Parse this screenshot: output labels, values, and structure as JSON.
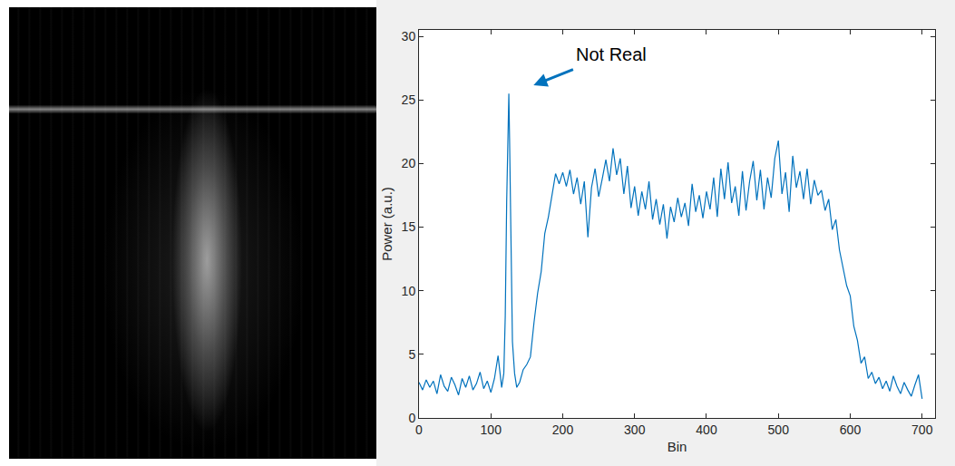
{
  "chart_data": {
    "type": "line",
    "xlabel": "Bin",
    "ylabel": "Power (a.u.)",
    "x": [
      0,
      5,
      10,
      15,
      20,
      25,
      30,
      35,
      40,
      45,
      50,
      55,
      60,
      65,
      70,
      75,
      80,
      85,
      90,
      95,
      100,
      105,
      110,
      115,
      118,
      120,
      122,
      124,
      125,
      126,
      128,
      130,
      133,
      136,
      140,
      145,
      150,
      155,
      160,
      165,
      170,
      175,
      180,
      185,
      190,
      195,
      200,
      205,
      210,
      215,
      220,
      225,
      230,
      235,
      240,
      245,
      250,
      255,
      260,
      265,
      270,
      275,
      280,
      285,
      290,
      295,
      300,
      305,
      310,
      315,
      320,
      325,
      330,
      335,
      340,
      345,
      350,
      355,
      360,
      365,
      370,
      375,
      380,
      385,
      390,
      395,
      400,
      405,
      410,
      415,
      420,
      425,
      430,
      435,
      440,
      445,
      450,
      455,
      460,
      465,
      470,
      475,
      480,
      485,
      490,
      495,
      500,
      505,
      510,
      515,
      520,
      525,
      530,
      535,
      540,
      545,
      550,
      555,
      560,
      565,
      570,
      575,
      580,
      585,
      590,
      595,
      600,
      605,
      610,
      615,
      620,
      625,
      630,
      635,
      640,
      645,
      650,
      655,
      660,
      665,
      670,
      675,
      680,
      685,
      690,
      695,
      700
    ],
    "values": [
      2.8,
      2.2,
      3.0,
      2.4,
      2.9,
      1.9,
      3.4,
      2.5,
      2.1,
      3.2,
      2.6,
      1.8,
      3.1,
      2.4,
      3.3,
      2.2,
      2.7,
      3.6,
      2.3,
      2.9,
      2.0,
      3.1,
      4.9,
      2.4,
      3.5,
      8,
      17,
      24,
      25.5,
      22,
      12,
      6,
      3.5,
      2.4,
      2.8,
      3.8,
      4.2,
      4.8,
      7.5,
      9.8,
      11.5,
      14.5,
      15.8,
      17.6,
      19.2,
      18.4,
      19.3,
      18.2,
      19.5,
      17.6,
      18.9,
      16.8,
      18.6,
      14.2,
      18.1,
      19.6,
      17.4,
      18.8,
      20.3,
      18.6,
      21.2,
      19.1,
      20.4,
      17.6,
      19.8,
      16.5,
      18.2,
      15.9,
      17.8,
      16.4,
      18.6,
      15.6,
      17.2,
      15.2,
      16.8,
      14.1,
      16.6,
      15.4,
      17.3,
      15.8,
      16.9,
      15.1,
      18.4,
      16.2,
      17.5,
      15.7,
      17.8,
      16.4,
      18.9,
      15.8,
      19.6,
      17.2,
      20.1,
      16.9,
      18.2,
      15.9,
      19.4,
      16.3,
      18.6,
      20.2,
      17.1,
      19.5,
      16.4,
      18.9,
      17.3,
      20.4,
      21.8,
      17.6,
      19.3,
      16.2,
      20.6,
      18.1,
      19.4,
      17.2,
      19.6,
      16.8,
      18.7,
      17.5,
      17.9,
      16.3,
      17.2,
      14.8,
      15.6,
      13.2,
      11.8,
      10.4,
      9.6,
      7.2,
      6.1,
      4.3,
      4.8,
      3.1,
      3.6,
      2.7,
      3.2,
      2.3,
      2.9,
      2.1,
      3.3,
      2.5,
      1.9,
      2.8,
      2.2,
      1.7,
      2.6,
      3.4,
      1.5
    ],
    "color": "#0072BD",
    "xlim": [
      0,
      718
    ],
    "ylim": [
      0,
      30.5
    ],
    "xticks": [
      0,
      100,
      200,
      300,
      400,
      500,
      600,
      700
    ],
    "yticks": [
      0,
      5,
      10,
      15,
      20,
      25,
      30
    ],
    "grid": false,
    "annotations": [
      {
        "text": "Not Real",
        "x": 157,
        "y": 26.1,
        "text_x": 268,
        "text_y": 28.6
      }
    ]
  }
}
